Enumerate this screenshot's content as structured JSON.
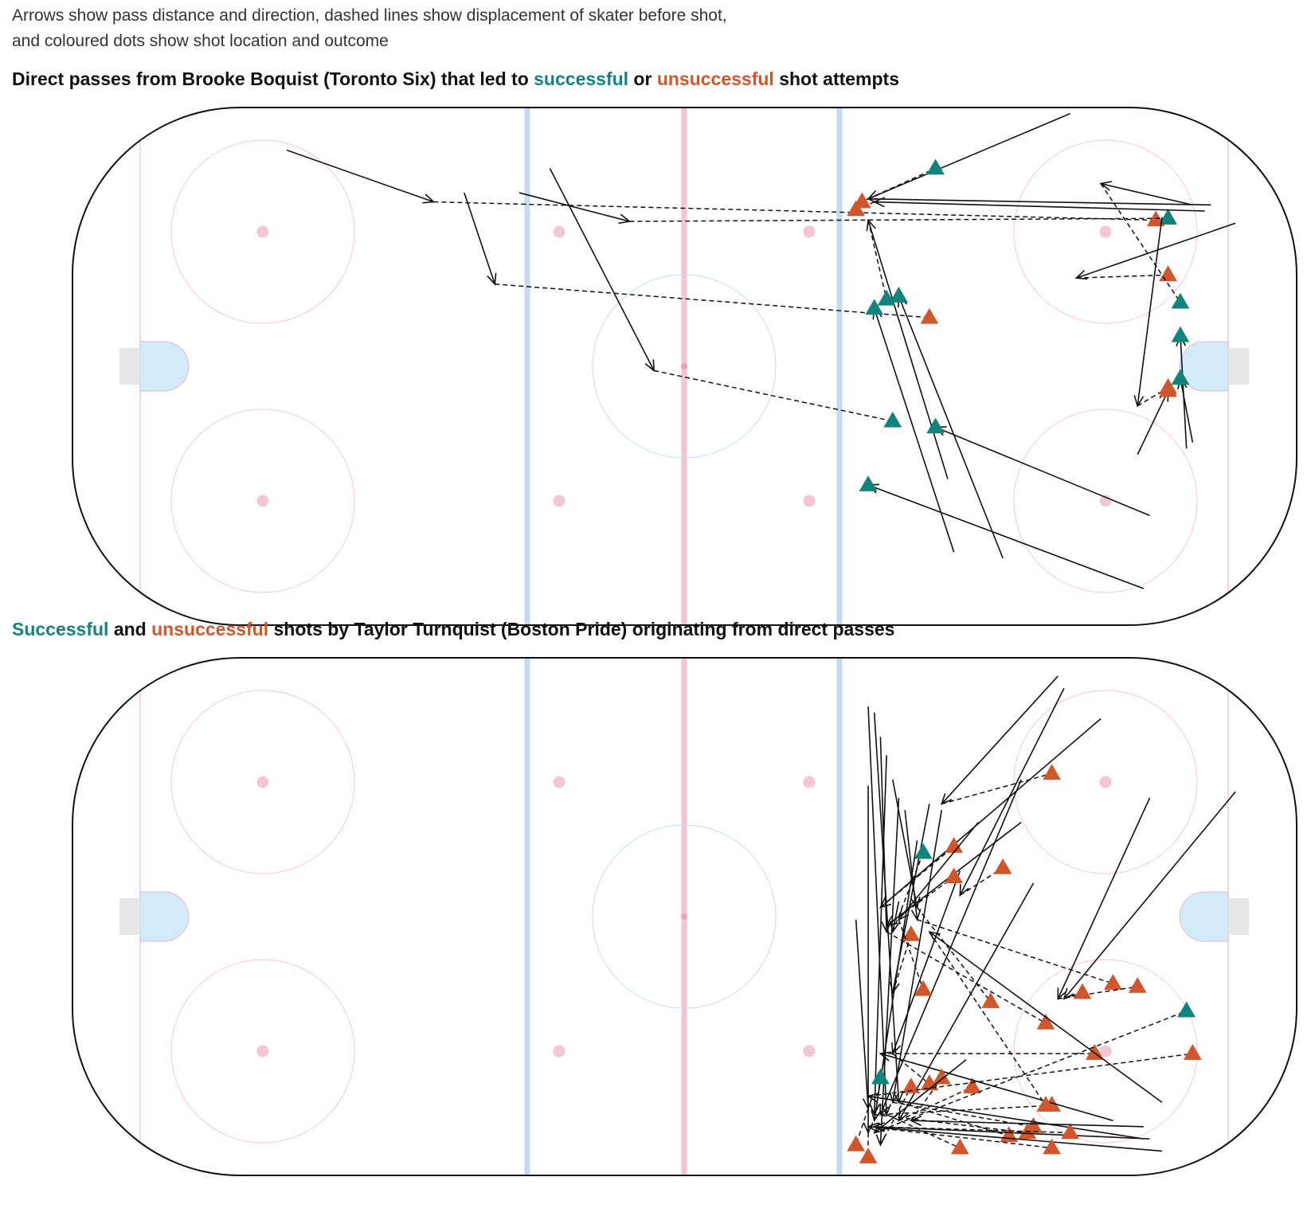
{
  "subtitle": {
    "line1": "Arrows show pass distance and direction, dashed lines show displacement of skater before shot,",
    "line2": "and coloured dots show shot location and outcome"
  },
  "colors": {
    "successful": "#12837d",
    "unsuccessful": "#d2562c",
    "blue_line": "#c5daf0",
    "red_line": "#f4c6d4",
    "faceoff": "#f4c6d4",
    "crease": "#d3eaf8",
    "goal": "#e6e6e6",
    "rink_border": "#111111",
    "arrow": "#111111"
  },
  "panels": [
    {
      "title_parts": [
        {
          "text": "Direct passes from Brooke Boquist (Toronto Six) that led to ",
          "role": "plain"
        },
        {
          "text": "successful",
          "role": "successful"
        },
        {
          "text": " or ",
          "role": "plain"
        },
        {
          "text": "unsuccessful",
          "role": "unsuccessful"
        },
        {
          "text": " shot attempts",
          "role": "plain"
        }
      ]
    },
    {
      "title_parts": [
        {
          "text": "Successful",
          "role": "successful"
        },
        {
          "text": " and ",
          "role": "plain"
        },
        {
          "text": "unsuccessful",
          "role": "unsuccessful"
        },
        {
          "text": " shots by Taylor Turnquist (Boston Pride) originating from direct passes",
          "role": "plain"
        }
      ]
    }
  ],
  "chart_data": [
    {
      "type": "scatter",
      "x_range": [
        0,
        200
      ],
      "y_range": [
        0,
        85
      ],
      "events": [
        {
          "pass": [
            [
              35,
              78
            ],
            [
              59,
              69.5
            ]
          ],
          "shot": [
            177,
            66.5
          ],
          "outcome": "unsuccessful"
        },
        {
          "pass": [
            [
              73,
              71
            ],
            [
              91,
              66.3
            ]
          ],
          "shot": [
            179,
            66.8
          ],
          "outcome": "successful"
        },
        {
          "pass": [
            [
              64,
              71
            ],
            [
              69,
              56
            ]
          ],
          "shot": [
            140,
            50.5
          ],
          "outcome": "unsuccessful"
        },
        {
          "pass": [
            [
              78,
              75
            ],
            [
              95,
              41.8
            ]
          ],
          "shot": [
            134,
            33.5
          ],
          "outcome": "successful"
        },
        {
          "pass": [
            [
              163,
              84
            ],
            [
              130,
              70
            ]
          ],
          "shot": [
            141,
            75
          ],
          "outcome": "successful"
        },
        {
          "pass": [
            [
              185,
              68
            ],
            [
              131,
              69.5
            ]
          ],
          "shot": [
            128,
            68.2
          ],
          "outcome": "unsuccessful"
        },
        {
          "pass": [
            [
              190,
              66
            ],
            [
              164,
              57
            ]
          ],
          "shot": [
            179,
            57.5
          ],
          "outcome": "unsuccessful"
        },
        {
          "pass": [
            [
              186,
              69
            ],
            [
              130,
              70
            ]
          ],
          "shot": [
            129,
            69.5
          ],
          "outcome": "unsuccessful"
        },
        {
          "pass": [
            [
              183,
              69
            ],
            [
              168,
              72.5
            ]
          ],
          "shot": [
            181,
            53
          ],
          "outcome": "successful"
        },
        {
          "pass": [
            [
              178,
              67
            ],
            [
              174,
              36
            ]
          ],
          "shot": [
            179,
            39
          ],
          "outcome": "unsuccessful"
        },
        {
          "pass": [
            [
              182,
              29
            ],
            [
              181,
              47.5
            ]
          ],
          "shot": [
            181,
            47.5
          ],
          "outcome": "successful"
        },
        {
          "pass": [
            [
              183,
              30
            ],
            [
              181,
              40.5
            ]
          ],
          "shot": [
            181,
            40.5
          ],
          "outcome": "successful"
        },
        {
          "pass": [
            [
              174,
              28
            ],
            [
              179,
              38.5
            ]
          ],
          "shot": [
            179,
            38.5
          ],
          "outcome": "unsuccessful"
        },
        {
          "pass": [
            [
              143,
              24
            ],
            [
              130,
              66.5
            ]
          ],
          "shot": [
            133,
            53.5
          ],
          "outcome": "successful"
        },
        {
          "pass": [
            [
              144,
              12
            ],
            [
              131,
              52
            ]
          ],
          "shot": [
            131,
            52
          ],
          "outcome": "successful"
        },
        {
          "pass": [
            [
              152,
              11
            ],
            [
              135,
              54
            ]
          ],
          "shot": [
            135,
            54
          ],
          "outcome": "successful"
        },
        {
          "pass": [
            [
              176,
              18
            ],
            [
              141,
              32.5
            ]
          ],
          "shot": [
            141,
            32.5
          ],
          "outcome": "successful"
        },
        {
          "pass": [
            [
              175,
              6
            ],
            [
              130,
              23
            ]
          ],
          "shot": [
            130,
            23
          ],
          "outcome": "successful"
        }
      ]
    },
    {
      "type": "scatter",
      "x_range": [
        0,
        200
      ],
      "y_range": [
        0,
        85
      ],
      "events": [
        {
          "pass": [
            [
              161,
              82
            ],
            [
              142,
              61
            ]
          ],
          "shot": [
            160,
            66
          ],
          "outcome": "unsuccessful"
        },
        {
          "pass": [
            [
              140,
              61
            ],
            [
              134,
              30
            ]
          ],
          "shot": [
            137,
            39.5
          ],
          "outcome": "unsuccessful"
        },
        {
          "pass": [
            [
              157,
              48
            ],
            [
              135,
              9
            ]
          ],
          "shot": [
            147,
            14.5
          ],
          "outcome": "unsuccessful"
        },
        {
          "pass": [
            [
              135,
              62
            ],
            [
              132,
              5
            ]
          ],
          "shot": [
            137,
            14.5
          ],
          "outcome": "unsuccessful"
        },
        {
          "pass": [
            [
              130,
              77
            ],
            [
              133,
              10
            ]
          ],
          "shot": [
            145,
            4.5
          ],
          "outcome": "unsuccessful"
        },
        {
          "pass": [
            [
              131,
              76
            ],
            [
              135,
              12
            ]
          ],
          "shot": [
            153,
            6.5
          ],
          "outcome": "unsuccessful"
        },
        {
          "pass": [
            [
              132,
              72
            ],
            [
              133,
              40
            ]
          ],
          "shot": [
            159,
            25
          ],
          "outcome": "unsuccessful"
        },
        {
          "pass": [
            [
              142,
              60
            ],
            [
              134,
              12
            ]
          ],
          "shot": [
            157,
            8
          ],
          "outcome": "unsuccessful"
        },
        {
          "pass": [
            [
              133,
              69
            ],
            [
              131,
              10
            ]
          ],
          "shot": [
            156,
            7
          ],
          "outcome": "unsuccessful"
        },
        {
          "pass": [
            [
              145,
              50
            ],
            [
              134,
              20
            ]
          ],
          "shot": [
            140,
            15
          ],
          "outcome": "unsuccessful"
        },
        {
          "pass": [
            [
              130,
              64
            ],
            [
              130,
              7
            ]
          ],
          "shot": [
            130,
            3
          ],
          "outcome": "unsuccessful"
        },
        {
          "pass": [
            [
              128,
              42
            ],
            [
              130,
              11
            ]
          ],
          "shot": [
            128,
            5
          ],
          "outcome": "unsuccessful"
        },
        {
          "pass": [
            [
              162,
              80
            ],
            [
              145,
              46
            ]
          ],
          "shot": [
            152,
            50.5
          ],
          "outcome": "unsuccessful"
        },
        {
          "pass": [
            [
              155,
              58
            ],
            [
              133,
              41
            ]
          ],
          "shot": [
            144,
            49
          ],
          "outcome": "unsuccessful"
        },
        {
          "pass": [
            [
              168,
              75
            ],
            [
              132,
              44
            ]
          ],
          "shot": [
            144,
            54
          ],
          "outcome": "unsuccessful"
        },
        {
          "pass": [
            [
              155,
              65
            ],
            [
              132,
              10
            ]
          ],
          "shot": [
            160,
            11.5
          ],
          "outcome": "unsuccessful"
        },
        {
          "pass": [
            [
              148,
              58
            ],
            [
              135,
              42
            ]
          ],
          "shot": [
            139,
            30.5
          ],
          "outcome": "unsuccessful"
        },
        {
          "pass": [
            [
              134,
              65
            ],
            [
              138,
              44
            ]
          ],
          "shot": [
            150,
            28.5
          ],
          "outcome": "unsuccessful"
        },
        {
          "pass": [
            [
              136,
              60
            ],
            [
              138,
              42
            ]
          ],
          "shot": [
            170,
            31.5
          ],
          "outcome": "unsuccessful"
        },
        {
          "pass": [
            [
              176,
              62
            ],
            [
              161,
              29
            ]
          ],
          "shot": [
            174,
            31
          ],
          "outcome": "unsuccessful"
        },
        {
          "pass": [
            [
              170,
              9
            ],
            [
              132,
              20
            ]
          ],
          "shot": [
            167,
            20
          ],
          "outcome": "unsuccessful"
        },
        {
          "pass": [
            [
              175,
              6
            ],
            [
              130,
              13
            ]
          ],
          "shot": [
            183,
            20
          ],
          "outcome": "unsuccessful"
        },
        {
          "pass": [
            [
              178,
              4
            ],
            [
              130,
              8
            ]
          ],
          "shot": [
            160,
            4.5
          ],
          "outcome": "unsuccessful"
        },
        {
          "pass": [
            [
              178,
              12
            ],
            [
              140,
              40
            ]
          ],
          "shot": [
            159,
            11.5
          ],
          "outcome": "unsuccessful"
        },
        {
          "pass": [
            [
              176,
              6
            ],
            [
              131,
              8
            ]
          ],
          "shot": [
            163,
            7
          ],
          "outcome": "unsuccessful"
        },
        {
          "pass": [
            [
              175,
              8
            ],
            [
              137,
              9
            ]
          ],
          "shot": [
            142,
            16
          ],
          "outcome": "unsuccessful"
        },
        {
          "pass": [
            [
              190,
              63
            ],
            [
              162,
              29
            ]
          ],
          "shot": [
            165,
            30
          ],
          "outcome": "unsuccessful"
        },
        {
          "pass": [
            [
              135,
              45
            ],
            [
              134,
              40
            ]
          ],
          "shot": [
            139,
            53
          ],
          "outcome": "successful"
        },
        {
          "pass": [
            [
              138,
              55
            ],
            [
              131,
              9
            ]
          ],
          "shot": [
            132,
            16
          ],
          "outcome": "successful"
        },
        {
          "pass": [
            [
              146,
              19
            ],
            [
              131,
              7
            ]
          ],
          "shot": [
            182,
            27
          ],
          "outcome": "successful"
        }
      ]
    }
  ]
}
